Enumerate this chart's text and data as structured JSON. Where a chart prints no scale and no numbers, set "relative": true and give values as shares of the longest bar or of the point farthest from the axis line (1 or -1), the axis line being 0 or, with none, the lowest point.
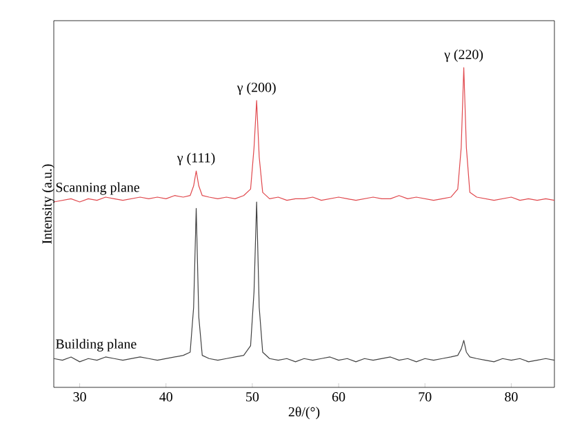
{
  "chart_data": {
    "type": "line",
    "relative": true,
    "xlabel": "2θ/(°)",
    "ylabel": "Intensity (a.u.)",
    "xlim": [
      27,
      85
    ],
    "xticks": [
      30,
      40,
      50,
      60,
      70,
      80
    ],
    "grid": false,
    "marker": "none",
    "line_style": "solid",
    "x": [
      27,
      28,
      29,
      30,
      31,
      32,
      33,
      34,
      35,
      36,
      37,
      38,
      39,
      40,
      41,
      42,
      42.8,
      43.2,
      43.5,
      43.8,
      44.2,
      45,
      46,
      47,
      48,
      49,
      49.8,
      50.2,
      50.5,
      50.8,
      51.2,
      52,
      53,
      54,
      55,
      56,
      57,
      58,
      59,
      60,
      61,
      62,
      63,
      64,
      65,
      66,
      67,
      68,
      69,
      70,
      71,
      72,
      73,
      73.8,
      74.2,
      74.5,
      74.8,
      75.2,
      76,
      77,
      78,
      79,
      80,
      81,
      82,
      83,
      84,
      85
    ],
    "series": [
      {
        "name": "Scanning plane",
        "color": "#e0474c",
        "values": [
          0.58,
          0.585,
          0.59,
          0.58,
          0.59,
          0.585,
          0.595,
          0.59,
          0.585,
          0.59,
          0.595,
          0.59,
          0.595,
          0.59,
          0.6,
          0.595,
          0.6,
          0.63,
          0.677,
          0.63,
          0.6,
          0.595,
          0.59,
          0.595,
          0.59,
          0.6,
          0.62,
          0.75,
          0.897,
          0.72,
          0.61,
          0.59,
          0.595,
          0.585,
          0.59,
          0.59,
          0.595,
          0.585,
          0.59,
          0.595,
          0.59,
          0.585,
          0.59,
          0.595,
          0.59,
          0.59,
          0.6,
          0.59,
          0.595,
          0.59,
          0.585,
          0.59,
          0.595,
          0.62,
          0.75,
          1.0,
          0.75,
          0.61,
          0.595,
          0.59,
          0.585,
          0.59,
          0.595,
          0.585,
          0.59,
          0.585,
          0.59,
          0.585
        ]
      },
      {
        "name": "Building plane",
        "color": "#404040",
        "values": [
          0.09,
          0.085,
          0.095,
          0.08,
          0.09,
          0.085,
          0.095,
          0.09,
          0.085,
          0.09,
          0.095,
          0.09,
          0.085,
          0.09,
          0.095,
          0.1,
          0.11,
          0.25,
          0.56,
          0.22,
          0.1,
          0.09,
          0.085,
          0.09,
          0.095,
          0.1,
          0.13,
          0.3,
          0.58,
          0.25,
          0.11,
          0.09,
          0.085,
          0.09,
          0.08,
          0.09,
          0.085,
          0.09,
          0.095,
          0.085,
          0.09,
          0.08,
          0.09,
          0.085,
          0.09,
          0.095,
          0.085,
          0.09,
          0.08,
          0.09,
          0.085,
          0.09,
          0.095,
          0.1,
          0.12,
          0.147,
          0.11,
          0.095,
          0.09,
          0.085,
          0.08,
          0.09,
          0.085,
          0.09,
          0.08,
          0.085,
          0.09,
          0.085
        ]
      }
    ],
    "annotations": [
      {
        "text": "γ (111)",
        "x": 43.5,
        "y": 0.677
      },
      {
        "text": "γ (200)",
        "x": 50.5,
        "y": 0.897
      },
      {
        "text": "γ (220)",
        "x": 74.5,
        "y": 1.0
      }
    ]
  }
}
